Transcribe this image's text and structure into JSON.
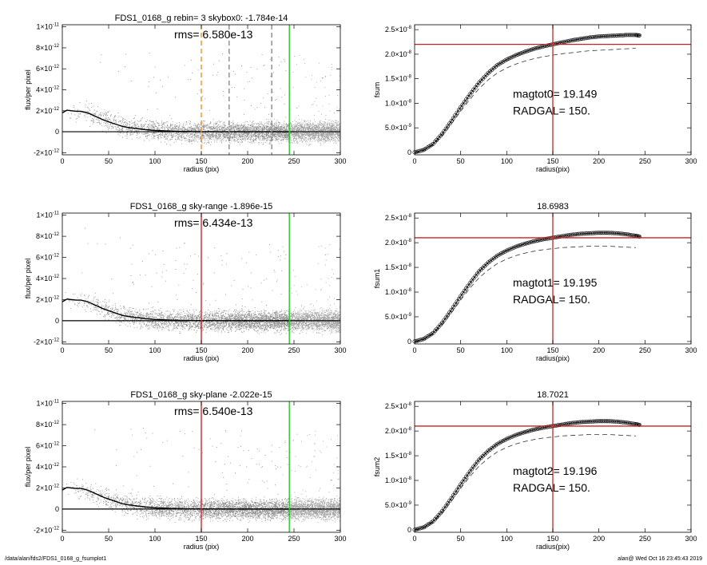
{
  "footer": {
    "path": "/data/alan/fds2/FDS1_0168_g_fsumplot1",
    "stamp": "alan@  Wed Oct 16 23:45:43 2019"
  },
  "chart_data": [
    {
      "id": "profile0",
      "type": "scatter",
      "title": "FDS1_0168_g rebin= 3    skybox0: -1.784e-14",
      "annotation": "rms= 6.580e-13",
      "xlabel": "radius (pix)",
      "ylabel": "flux/per pixel",
      "xlim": [
        0,
        300
      ],
      "ylim": [
        -2.2e-12,
        1.02e-11
      ],
      "x_ticks": [
        0,
        50,
        100,
        150,
        200,
        250,
        300
      ],
      "x_tick_labels": [
        "0",
        "50",
        "100",
        "150",
        "200",
        "250",
        "300"
      ],
      "y_ticks": [
        -2e-12,
        0,
        2e-12,
        4e-12,
        6e-12,
        8e-12,
        1e-11
      ],
      "y_tick_labels": [
        [
          "-2×10",
          "-12"
        ],
        [
          "0",
          ""
        ],
        [
          "2×10",
          "-12"
        ],
        [
          "4×10",
          "-12"
        ],
        [
          "6×10",
          "-12"
        ],
        [
          "8×10",
          "-12"
        ],
        [
          "1×10",
          "-11"
        ]
      ],
      "profile_x": [
        0,
        5,
        10,
        15,
        20,
        25,
        30,
        35,
        40,
        45,
        50,
        55,
        60,
        65,
        70,
        80,
        90,
        100,
        110,
        120,
        130,
        150,
        180,
        210,
        245
      ],
      "profile_y": [
        1.8e-12,
        2.05e-12,
        2e-12,
        1.95e-12,
        1.95e-12,
        1.85e-12,
        1.7e-12,
        1.5e-12,
        1.3e-12,
        1.1e-12,
        9.5e-13,
        8e-13,
        6.5e-13,
        5e-13,
        4.2e-13,
        3e-13,
        2e-13,
        1.2e-13,
        8e-14,
        5e-14,
        3e-14,
        1e-14,
        0,
        0,
        0
      ],
      "vlines": [
        {
          "x": 150,
          "color": "#ff8c1a",
          "dash": "6,4"
        },
        {
          "x": 180,
          "color": "#888888",
          "dash": "6,4"
        },
        {
          "x": 226,
          "color": "#888888",
          "dash": "6,4"
        },
        {
          "x": 245,
          "color": "#22cc22",
          "dash": ""
        }
      ],
      "hlines": [
        {
          "y": 0,
          "color": "#000000"
        }
      ],
      "seed": 11
    },
    {
      "id": "growth0",
      "type": "line",
      "title": "",
      "annotation_lines": [
        "magtot0=  19.149",
        "RADGAL=    150."
      ],
      "xlabel": "radius(pix)",
      "ylabel": "fsum",
      "xlim": [
        0,
        300
      ],
      "ylim": [
        -5e-10,
        2.6e-08
      ],
      "x_ticks": [
        0,
        50,
        100,
        150,
        200,
        250,
        300
      ],
      "x_tick_labels": [
        "0",
        "50",
        "100",
        "150",
        "200",
        "250",
        "300"
      ],
      "y_ticks": [
        0,
        5e-09,
        1e-08,
        1.5e-08,
        2e-08,
        2.5e-08
      ],
      "y_tick_labels": [
        [
          "0",
          ""
        ],
        [
          "5.0×10",
          "-9"
        ],
        [
          "1.0×10",
          "-8"
        ],
        [
          "1.5×10",
          "-8"
        ],
        [
          "2.0×10",
          "-8"
        ],
        [
          "2.5×10",
          "-8"
        ]
      ],
      "curve_x": [
        0,
        10,
        20,
        30,
        40,
        50,
        60,
        70,
        80,
        90,
        100,
        110,
        120,
        130,
        140,
        150,
        160,
        170,
        180,
        190,
        200,
        210,
        220,
        230,
        240,
        245
      ],
      "curve_y": [
        0,
        5e-10,
        1.7e-09,
        3.8e-09,
        6.4e-09,
        9.2e-09,
        1.18e-08,
        1.42e-08,
        1.62e-08,
        1.78e-08,
        1.89e-08,
        1.98e-08,
        2.05e-08,
        2.11e-08,
        2.16e-08,
        2.2e-08,
        2.24e-08,
        2.28e-08,
        2.31e-08,
        2.34e-08,
        2.36e-08,
        2.37e-08,
        2.38e-08,
        2.39e-08,
        2.39e-08,
        2.38e-08
      ],
      "dashed_x": [
        0,
        10,
        20,
        30,
        40,
        50,
        60,
        70,
        80,
        90,
        100,
        110,
        120,
        130,
        140,
        150,
        160,
        170,
        180,
        190,
        200,
        210,
        220,
        230,
        240
      ],
      "dashed_y": [
        0,
        4e-10,
        1.5e-09,
        3.4e-09,
        5.8e-09,
        8.4e-09,
        1.08e-08,
        1.3e-08,
        1.48e-08,
        1.62e-08,
        1.72e-08,
        1.8e-08,
        1.86e-08,
        1.91e-08,
        1.95e-08,
        1.98e-08,
        2.01e-08,
        2.03e-08,
        2.05e-08,
        2.07e-08,
        2.08e-08,
        2.09e-08,
        2.1e-08,
        2.11e-08,
        2.12e-08
      ],
      "vline_x": 150,
      "hline_y": 2.2e-08
    },
    {
      "id": "profile1",
      "type": "scatter",
      "title": "FDS1_0168_g sky-range -1.896e-15",
      "annotation": "rms= 6.434e-13",
      "xlabel": "radius (pix)",
      "ylabel": "flux/per pixel",
      "xlim": [
        0,
        300
      ],
      "ylim": [
        -2.2e-12,
        1.02e-11
      ],
      "x_ticks": [
        0,
        50,
        100,
        150,
        200,
        250,
        300
      ],
      "x_tick_labels": [
        "0",
        "50",
        "100",
        "150",
        "200",
        "250",
        "300"
      ],
      "y_ticks": [
        -2e-12,
        0,
        2e-12,
        4e-12,
        6e-12,
        8e-12,
        1e-11
      ],
      "y_tick_labels": [
        [
          "-2×10",
          "-12"
        ],
        [
          "0",
          ""
        ],
        [
          "2×10",
          "-12"
        ],
        [
          "4×10",
          "-12"
        ],
        [
          "6×10",
          "-12"
        ],
        [
          "8×10",
          "-12"
        ],
        [
          "1×10",
          "-11"
        ]
      ],
      "profile_x": [
        0,
        5,
        10,
        15,
        20,
        25,
        30,
        35,
        40,
        45,
        50,
        55,
        60,
        65,
        70,
        80,
        90,
        100,
        110,
        120,
        130,
        150,
        180,
        210,
        245
      ],
      "profile_y": [
        1.8e-12,
        2.05e-12,
        2e-12,
        1.95e-12,
        1.95e-12,
        1.85e-12,
        1.7e-12,
        1.5e-12,
        1.3e-12,
        1.1e-12,
        9.5e-13,
        8e-13,
        6.5e-13,
        5e-13,
        4.2e-13,
        3e-13,
        2e-13,
        1.2e-13,
        8e-14,
        5e-14,
        3e-14,
        1e-14,
        0,
        0,
        0
      ],
      "vlines": [
        {
          "x": 150,
          "color": "#dd2222",
          "dash": ""
        },
        {
          "x": 245,
          "color": "#22cc22",
          "dash": ""
        }
      ],
      "hlines": [
        {
          "y": 0,
          "color": "#000000"
        }
      ],
      "seed": 23
    },
    {
      "id": "growth1",
      "type": "line",
      "title": "18.6983",
      "annotation_lines": [
        "magtot1=  19.195",
        "RADGAL=    150."
      ],
      "xlabel": "radius(pix)",
      "ylabel": "fsum1",
      "xlim": [
        0,
        300
      ],
      "ylim": [
        -5e-10,
        2.6e-08
      ],
      "x_ticks": [
        0,
        50,
        100,
        150,
        200,
        250,
        300
      ],
      "x_tick_labels": [
        "0",
        "50",
        "100",
        "150",
        "200",
        "250",
        "300"
      ],
      "y_ticks": [
        0,
        5e-09,
        1e-08,
        1.5e-08,
        2e-08,
        2.5e-08
      ],
      "y_tick_labels": [
        [
          "0",
          ""
        ],
        [
          "5.0×10",
          "-9"
        ],
        [
          "1.0×10",
          "-8"
        ],
        [
          "1.5×10",
          "-8"
        ],
        [
          "2.0×10",
          "-8"
        ],
        [
          "2.5×10",
          "-8"
        ]
      ],
      "curve_x": [
        0,
        10,
        20,
        30,
        40,
        50,
        60,
        70,
        80,
        90,
        100,
        110,
        120,
        130,
        140,
        150,
        160,
        170,
        180,
        190,
        200,
        210,
        220,
        230,
        240,
        245
      ],
      "curve_y": [
        0,
        5e-10,
        1.7e-09,
        3.8e-09,
        6.4e-09,
        9.2e-09,
        1.18e-08,
        1.42e-08,
        1.6e-08,
        1.74e-08,
        1.84e-08,
        1.92e-08,
        1.98e-08,
        2.03e-08,
        2.07e-08,
        2.1e-08,
        2.13e-08,
        2.16e-08,
        2.18e-08,
        2.19e-08,
        2.2e-08,
        2.2e-08,
        2.19e-08,
        2.17e-08,
        2.14e-08,
        2.12e-08
      ],
      "dashed_x": [
        0,
        10,
        20,
        30,
        40,
        50,
        60,
        70,
        80,
        90,
        100,
        110,
        120,
        130,
        140,
        150,
        160,
        170,
        180,
        190,
        200,
        210,
        220,
        230,
        240
      ],
      "dashed_y": [
        0,
        4e-10,
        1.5e-09,
        3.4e-09,
        5.8e-09,
        8.4e-09,
        1.08e-08,
        1.29e-08,
        1.45e-08,
        1.58e-08,
        1.67e-08,
        1.74e-08,
        1.79e-08,
        1.83e-08,
        1.86e-08,
        1.88e-08,
        1.9e-08,
        1.91e-08,
        1.92e-08,
        1.93e-08,
        1.93e-08,
        1.93e-08,
        1.92e-08,
        1.91e-08,
        1.9e-08
      ],
      "vline_x": 150,
      "hline_y": 2.1e-08
    },
    {
      "id": "profile2",
      "type": "scatter",
      "title": "FDS1_0168_g sky-plane -2.022e-15",
      "annotation": "rms= 6.540e-13",
      "xlabel": "radius (pix)",
      "ylabel": "flux/per pixel",
      "xlim": [
        0,
        300
      ],
      "ylim": [
        -2.2e-12,
        1.02e-11
      ],
      "x_ticks": [
        0,
        50,
        100,
        150,
        200,
        250,
        300
      ],
      "x_tick_labels": [
        "0",
        "50",
        "100",
        "150",
        "200",
        "250",
        "300"
      ],
      "y_ticks": [
        -2e-12,
        0,
        2e-12,
        4e-12,
        6e-12,
        8e-12,
        1e-11
      ],
      "y_tick_labels": [
        [
          "-2×10",
          "-12"
        ],
        [
          "0",
          ""
        ],
        [
          "2×10",
          "-12"
        ],
        [
          "4×10",
          "-12"
        ],
        [
          "6×10",
          "-12"
        ],
        [
          "8×10",
          "-12"
        ],
        [
          "1×10",
          "-11"
        ]
      ],
      "profile_x": [
        0,
        5,
        10,
        15,
        20,
        25,
        30,
        35,
        40,
        45,
        50,
        55,
        60,
        65,
        70,
        80,
        90,
        100,
        110,
        120,
        130,
        150,
        180,
        210,
        245
      ],
      "profile_y": [
        1.8e-12,
        2.05e-12,
        2e-12,
        1.95e-12,
        1.95e-12,
        1.85e-12,
        1.7e-12,
        1.5e-12,
        1.3e-12,
        1.1e-12,
        9.5e-13,
        8e-13,
        6.5e-13,
        5e-13,
        4.2e-13,
        3e-13,
        2e-13,
        1.2e-13,
        8e-14,
        5e-14,
        3e-14,
        1e-14,
        0,
        0,
        0
      ],
      "vlines": [
        {
          "x": 150,
          "color": "#dd2222",
          "dash": ""
        },
        {
          "x": 245,
          "color": "#22cc22",
          "dash": ""
        }
      ],
      "hlines": [
        {
          "y": 0,
          "color": "#000000"
        }
      ],
      "seed": 37
    },
    {
      "id": "growth2",
      "type": "line",
      "title": "18.7021",
      "annotation_lines": [
        "magtot2=  19.196",
        "RADGAL=    150."
      ],
      "xlabel": "radius(pix)",
      "ylabel": "fsum2",
      "xlim": [
        0,
        300
      ],
      "ylim": [
        -5e-10,
        2.6e-08
      ],
      "x_ticks": [
        0,
        50,
        100,
        150,
        200,
        250,
        300
      ],
      "x_tick_labels": [
        "0",
        "50",
        "100",
        "150",
        "200",
        "250",
        "300"
      ],
      "y_ticks": [
        0,
        5e-09,
        1e-08,
        1.5e-08,
        2e-08,
        2.5e-08
      ],
      "y_tick_labels": [
        [
          "0",
          ""
        ],
        [
          "5.0×10",
          "-9"
        ],
        [
          "1.0×10",
          "-8"
        ],
        [
          "1.5×10",
          "-8"
        ],
        [
          "2.0×10",
          "-8"
        ],
        [
          "2.5×10",
          "-8"
        ]
      ],
      "curve_x": [
        0,
        10,
        20,
        30,
        40,
        50,
        60,
        70,
        80,
        90,
        100,
        110,
        120,
        130,
        140,
        150,
        160,
        170,
        180,
        190,
        200,
        210,
        220,
        230,
        240,
        245
      ],
      "curve_y": [
        0,
        5e-10,
        1.7e-09,
        3.8e-09,
        6.4e-09,
        9.2e-09,
        1.18e-08,
        1.42e-08,
        1.6e-08,
        1.74e-08,
        1.84e-08,
        1.92e-08,
        1.98e-08,
        2.03e-08,
        2.07e-08,
        2.1e-08,
        2.13e-08,
        2.16e-08,
        2.18e-08,
        2.19e-08,
        2.2e-08,
        2.2e-08,
        2.19e-08,
        2.17e-08,
        2.14e-08,
        2.12e-08
      ],
      "dashed_x": [
        0,
        10,
        20,
        30,
        40,
        50,
        60,
        70,
        80,
        90,
        100,
        110,
        120,
        130,
        140,
        150,
        160,
        170,
        180,
        190,
        200,
        210,
        220,
        230,
        240
      ],
      "dashed_y": [
        0,
        4e-10,
        1.5e-09,
        3.4e-09,
        5.8e-09,
        8.4e-09,
        1.08e-08,
        1.29e-08,
        1.45e-08,
        1.58e-08,
        1.67e-08,
        1.74e-08,
        1.79e-08,
        1.83e-08,
        1.86e-08,
        1.88e-08,
        1.9e-08,
        1.91e-08,
        1.92e-08,
        1.93e-08,
        1.93e-08,
        1.93e-08,
        1.92e-08,
        1.91e-08,
        1.9e-08
      ],
      "vline_x": 150,
      "hline_y": 2.1e-08
    }
  ]
}
